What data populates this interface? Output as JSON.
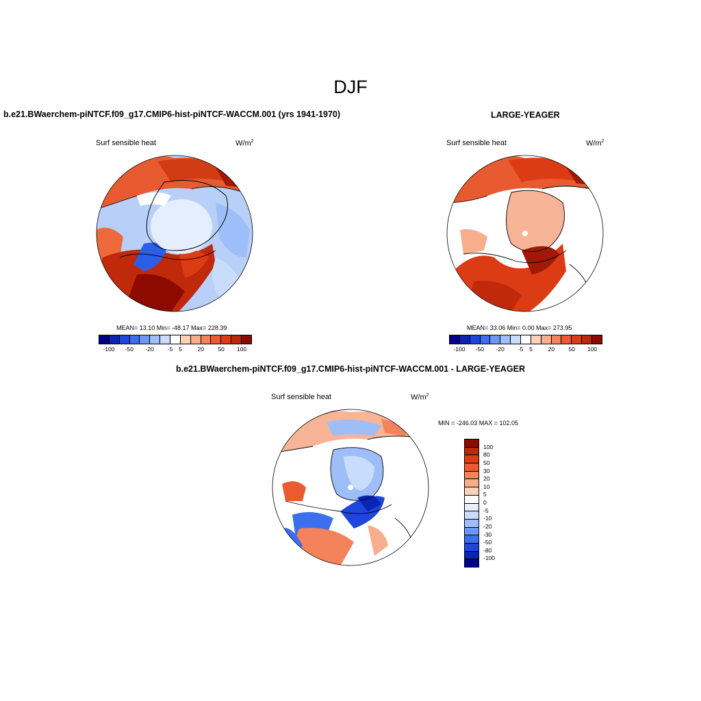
{
  "title": "DJF",
  "left_panel": {
    "case": "b.e21.BWaerchem-piNTCF.f09_g17.CMIP6-hist-piNTCF-WACCM.001 (yrs 1941-1970)",
    "variable": "Surf sensible heat",
    "units_base": "W/m",
    "units_sup": "2",
    "mean_text": "MEAN=  13.10  Min= -48.17  Max= 228.39"
  },
  "right_panel": {
    "case": "LARGE-YEAGER",
    "variable": "Surf sensible heat",
    "units_base": "W/m",
    "units_sup": "2",
    "mean_text": "MEAN=  33.06  Min=   0.00  Max= 273.95"
  },
  "diff_panel": {
    "case": "b.e21.BWaerchem-piNTCF.f09_g17.CMIP6-hist-piNTCF-WACCM.001 - LARGE-YEAGER",
    "variable": "Surf sensible heat",
    "units_base": "W/m",
    "units_sup": "2",
    "minmax_text": "MIN = -246.03 MAX = 102.05"
  },
  "colorbar_top": {
    "colors": [
      "#00008c",
      "#0a24b4",
      "#1e46dc",
      "#3c6ef0",
      "#6e96f5",
      "#9ebefa",
      "#c8dcfc",
      "#ffffff",
      "#fbd2b9",
      "#f8ae8c",
      "#f4825a",
      "#ec5a32",
      "#dc3c14",
      "#be280a",
      "#8c0a00"
    ],
    "tick_labels": [
      "-100",
      "-50",
      "-20",
      "-5",
      "5",
      "20",
      "50",
      "100"
    ]
  },
  "colorbar_diff": {
    "colors": [
      "#8c0a00",
      "#be280a",
      "#dc3c14",
      "#ec5a32",
      "#f4825a",
      "#f8ae8c",
      "#fbd2b9",
      "#ffffff",
      "#e8eefa",
      "#c8dcfc",
      "#9ebefa",
      "#6e96f5",
      "#3c6ef0",
      "#1e46dc",
      "#0a24b4",
      "#00008c"
    ],
    "tick_labels": [
      "100",
      "80",
      "50",
      "30",
      "20",
      "10",
      "5",
      "0",
      "-5",
      "-10",
      "-20",
      "-30",
      "-50",
      "-80",
      "-100"
    ]
  }
}
